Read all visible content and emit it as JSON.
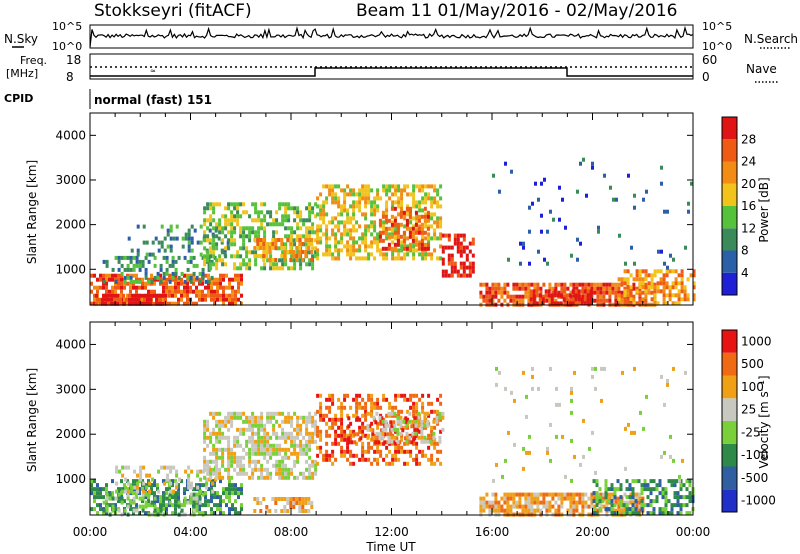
{
  "header": {
    "station": "Stokkseyri (fitACF)",
    "beam_info": "Beam 11  01/May/2016 - 02/May/2016"
  },
  "top_panels": {
    "nsky_label": "N.Sky",
    "nsky_ticks": [
      "10^5",
      "10^0"
    ],
    "nsearch_label": "N.Search",
    "nsearch_ticks": [
      "10^5",
      "10^0"
    ],
    "freq_label_1": "Freq.",
    "freq_label_2": "[MHz]",
    "freq_ticks": [
      "18",
      "8"
    ],
    "nave_label": "Nave",
    "nave_ticks": [
      "60",
      "0"
    ],
    "cpid_label": "CPID",
    "cpid_value": "normal (fast) 151"
  },
  "colors": {
    "power": [
      "#1f1fd6",
      "#2b5fa8",
      "#3a8a5a",
      "#55c23a",
      "#f2c31a",
      "#f28c14",
      "#ef5a14",
      "#e01414"
    ],
    "velocity": [
      "#1f2fc8",
      "#2f5fa0",
      "#2f8a4a",
      "#7ad03a",
      "#c8c8c0",
      "#f0a014",
      "#f06a14",
      "#e81414"
    ]
  },
  "chart_data": [
    {
      "type": "heatmap",
      "name": "power",
      "ylabel": "Slant Range [km]",
      "yticks": [
        "1000",
        "2000",
        "3000",
        "4000"
      ],
      "ylim": [
        200,
        4500
      ],
      "xticks": [
        "00:00",
        "04:00",
        "08:00",
        "12:00",
        "16:00",
        "20:00",
        "00:00"
      ],
      "colorbar_label": "Power [dB]",
      "colorbar_ticks": [
        "28",
        "24",
        "20",
        "16",
        "12",
        "8",
        "4"
      ],
      "blobs": [
        {
          "x0": 0.0,
          "x1": 6.0,
          "y0": 200,
          "y1": 900,
          "lvl": 6,
          "dens": 0.7
        },
        {
          "x0": 0.2,
          "x1": 3.0,
          "y0": 200,
          "y1": 450,
          "lvl": 7,
          "dens": 0.8
        },
        {
          "x0": 0.5,
          "x1": 5.0,
          "y0": 700,
          "y1": 1300,
          "lvl": 2,
          "dens": 0.35
        },
        {
          "x0": 1.5,
          "x1": 5.5,
          "y0": 1300,
          "y1": 2000,
          "lvl": 2,
          "dens": 0.25
        },
        {
          "x0": 4.5,
          "x1": 9.0,
          "y0": 1000,
          "y1": 2500,
          "lvl": 3,
          "dens": 0.55
        },
        {
          "x0": 6.5,
          "x1": 8.8,
          "y0": 1200,
          "y1": 1700,
          "lvl": 5,
          "dens": 0.6
        },
        {
          "x0": 9.0,
          "x1": 14.0,
          "y0": 1200,
          "y1": 2900,
          "lvl": 4,
          "dens": 0.55
        },
        {
          "x0": 11.5,
          "x1": 13.5,
          "y0": 1500,
          "y1": 2400,
          "lvl": 6,
          "dens": 0.5
        },
        {
          "x0": 14.0,
          "x1": 15.2,
          "y0": 900,
          "y1": 1800,
          "lvl": 7,
          "dens": 0.6
        },
        {
          "x0": 15.5,
          "x1": 22.5,
          "y0": 200,
          "y1": 700,
          "lvl": 6,
          "dens": 0.75
        },
        {
          "x0": 17.5,
          "x1": 20.0,
          "y0": 250,
          "y1": 550,
          "lvl": 7,
          "dens": 0.8
        },
        {
          "x0": 21.0,
          "x1": 24.0,
          "y0": 200,
          "y1": 1000,
          "lvl": 5,
          "dens": 0.55
        },
        {
          "x0": 16.0,
          "x1": 24.0,
          "y0": 1000,
          "y1": 3500,
          "lvl": 1,
          "dens": 0.04
        }
      ]
    },
    {
      "type": "heatmap",
      "name": "velocity",
      "ylabel": "Slant Range [km]",
      "yticks": [
        "1000",
        "2000",
        "3000",
        "4000"
      ],
      "ylim": [
        200,
        4500
      ],
      "xticks": [
        "00:00",
        "04:00",
        "08:00",
        "12:00",
        "16:00",
        "20:00",
        "00:00"
      ],
      "xlabel": "Time UT",
      "colorbar_label": "Velocity [m s⁻¹]",
      "colorbar_ticks": [
        "1000",
        "500",
        "100",
        "25",
        "-25",
        "-100",
        "-500",
        "-1000"
      ],
      "blobs": [
        {
          "x0": 0.0,
          "x1": 6.0,
          "y0": 200,
          "y1": 1000,
          "lvl": 2,
          "dens": 0.55
        },
        {
          "x0": 0.5,
          "x1": 4.5,
          "y0": 200,
          "y1": 700,
          "lvl": 3,
          "dens": 0.45
        },
        {
          "x0": 1.0,
          "x1": 5.0,
          "y0": 700,
          "y1": 1300,
          "lvl": 4,
          "dens": 0.35
        },
        {
          "x0": 4.5,
          "x1": 9.0,
          "y0": 1000,
          "y1": 2500,
          "lvl": 4,
          "dens": 0.6
        },
        {
          "x0": 6.5,
          "x1": 8.8,
          "y0": 300,
          "y1": 600,
          "lvl": 5,
          "dens": 0.6
        },
        {
          "x0": 9.0,
          "x1": 14.0,
          "y0": 1300,
          "y1": 2900,
          "lvl": 6,
          "dens": 0.45
        },
        {
          "x0": 10.0,
          "x1": 13.0,
          "y0": 1800,
          "y1": 2400,
          "lvl": 7,
          "dens": 0.3
        },
        {
          "x0": 11.0,
          "x1": 14.0,
          "y0": 1800,
          "y1": 2500,
          "lvl": 4,
          "dens": 0.4
        },
        {
          "x0": 15.5,
          "x1": 22.0,
          "y0": 200,
          "y1": 700,
          "lvl": 5,
          "dens": 0.75
        },
        {
          "x0": 20.0,
          "x1": 24.0,
          "y0": 200,
          "y1": 1000,
          "lvl": 2,
          "dens": 0.5
        },
        {
          "x0": 16.0,
          "x1": 24.0,
          "y0": 1000,
          "y1": 3500,
          "lvl": 4,
          "dens": 0.04
        }
      ]
    }
  ]
}
